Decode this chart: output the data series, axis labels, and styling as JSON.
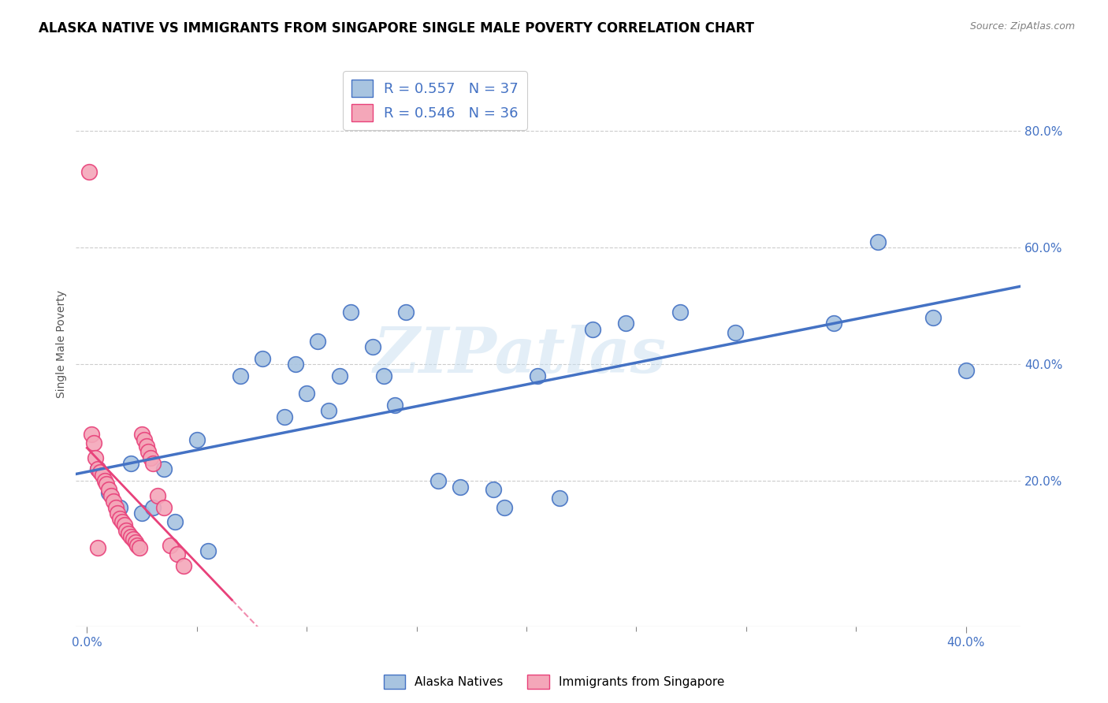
{
  "title": "ALASKA NATIVE VS IMMIGRANTS FROM SINGAPORE SINGLE MALE POVERTY CORRELATION CHART",
  "source": "Source: ZipAtlas.com",
  "ylabel_label": "Single Male Poverty",
  "x_tick_positions": [
    0.0,
    0.4
  ],
  "x_tick_labels": [
    "0.0%",
    "40.0%"
  ],
  "y_tick_values": [
    0.2,
    0.4,
    0.6,
    0.8
  ],
  "y_tick_labels": [
    "20.0%",
    "40.0%",
    "60.0%",
    "80.0%"
  ],
  "xlim": [
    -0.005,
    0.425
  ],
  "ylim": [
    -0.05,
    0.92
  ],
  "legend_label1": "R = 0.557   N = 37",
  "legend_label2": "R = 0.546   N = 36",
  "dot_color_blue": "#a8c4e0",
  "dot_color_pink": "#f4a7b9",
  "line_color_blue": "#4472c4",
  "line_color_pink": "#e8417a",
  "watermark": "ZIPatlas",
  "legend_bottom_label1": "Alaska Natives",
  "legend_bottom_label2": "Immigrants from Singapore",
  "blue_x": [
    0.005,
    0.01,
    0.015,
    0.02,
    0.025,
    0.03,
    0.035,
    0.04,
    0.05,
    0.055,
    0.07,
    0.08,
    0.09,
    0.095,
    0.1,
    0.105,
    0.11,
    0.115,
    0.12,
    0.13,
    0.135,
    0.14,
    0.145,
    0.16,
    0.17,
    0.185,
    0.19,
    0.205,
    0.215,
    0.23,
    0.245,
    0.27,
    0.295,
    0.34,
    0.36,
    0.385,
    0.4
  ],
  "blue_y": [
    0.22,
    0.18,
    0.155,
    0.23,
    0.145,
    0.155,
    0.22,
    0.13,
    0.27,
    0.08,
    0.38,
    0.41,
    0.31,
    0.4,
    0.35,
    0.44,
    0.32,
    0.38,
    0.49,
    0.43,
    0.38,
    0.33,
    0.49,
    0.2,
    0.19,
    0.185,
    0.155,
    0.38,
    0.17,
    0.46,
    0.47,
    0.49,
    0.455,
    0.47,
    0.61,
    0.48,
    0.39
  ],
  "pink_x": [
    0.001,
    0.002,
    0.003,
    0.004,
    0.005,
    0.006,
    0.007,
    0.008,
    0.009,
    0.01,
    0.011,
    0.012,
    0.013,
    0.014,
    0.015,
    0.016,
    0.017,
    0.018,
    0.019,
    0.02,
    0.021,
    0.022,
    0.023,
    0.024,
    0.025,
    0.026,
    0.027,
    0.028,
    0.029,
    0.03,
    0.032,
    0.035,
    0.038,
    0.041,
    0.044,
    0.005
  ],
  "pink_y": [
    0.73,
    0.28,
    0.265,
    0.24,
    0.22,
    0.215,
    0.21,
    0.2,
    0.195,
    0.185,
    0.175,
    0.165,
    0.155,
    0.145,
    0.135,
    0.13,
    0.125,
    0.115,
    0.11,
    0.105,
    0.1,
    0.095,
    0.09,
    0.085,
    0.28,
    0.27,
    0.26,
    0.25,
    0.24,
    0.23,
    0.175,
    0.155,
    0.09,
    0.075,
    0.055,
    0.085
  ],
  "title_fontsize": 12,
  "axis_label_fontsize": 10,
  "tick_fontsize": 11,
  "legend_fontsize": 13
}
